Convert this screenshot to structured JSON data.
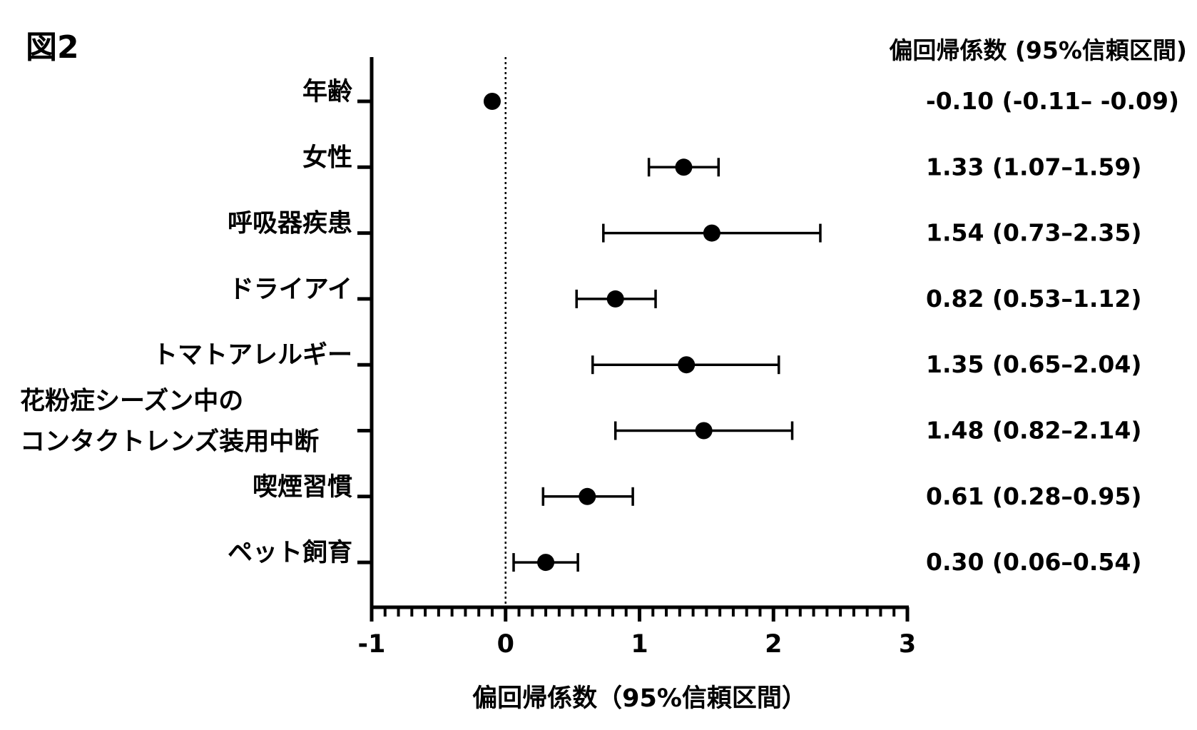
{
  "figure_label": "図2",
  "chart_data": {
    "type": "forest",
    "title": "",
    "xlabel": "偏回帰係数（95%信頼区間）",
    "ylabel": "",
    "xlim": [
      -1,
      3
    ],
    "x_ticks": [
      -1,
      0,
      1,
      2,
      3
    ],
    "x_tick_labels": [
      "-1",
      "0",
      "1",
      "2",
      "3"
    ],
    "reference_line": 0,
    "coef_column_header": "偏回帰係数 (95%信頼区間)",
    "rows": [
      {
        "label": [
          "年齢"
        ],
        "estimate": -0.1,
        "lower": -0.11,
        "upper": -0.09,
        "text": "-0.10 (-0.11– -0.09)"
      },
      {
        "label": [
          "女性"
        ],
        "estimate": 1.33,
        "lower": 1.07,
        "upper": 1.59,
        "text": "1.33 (1.07–1.59)"
      },
      {
        "label": [
          "呼吸器疾患"
        ],
        "estimate": 1.54,
        "lower": 0.73,
        "upper": 2.35,
        "text": "1.54 (0.73–2.35)"
      },
      {
        "label": [
          "ドライアイ"
        ],
        "estimate": 0.82,
        "lower": 0.53,
        "upper": 1.12,
        "text": "0.82 (0.53–1.12)"
      },
      {
        "label": [
          "トマトアレルギー"
        ],
        "estimate": 1.35,
        "lower": 0.65,
        "upper": 2.04,
        "text": "1.35 (0.65–2.04)"
      },
      {
        "label": [
          "花粉症シーズン中の",
          "コンタクトレンズ装用中断"
        ],
        "estimate": 1.48,
        "lower": 0.82,
        "upper": 2.14,
        "text": "1.48 (0.82–2.14)"
      },
      {
        "label": [
          "喫煙習慣"
        ],
        "estimate": 0.61,
        "lower": 0.28,
        "upper": 0.95,
        "text": "0.61 (0.28–0.95)"
      },
      {
        "label": [
          "ペット飼育"
        ],
        "estimate": 0.3,
        "lower": 0.06,
        "upper": 0.54,
        "text": "0.30 (0.06–0.54)"
      }
    ],
    "grid": false,
    "colors": {
      "marker": "#000000",
      "axis": "#000000"
    }
  }
}
